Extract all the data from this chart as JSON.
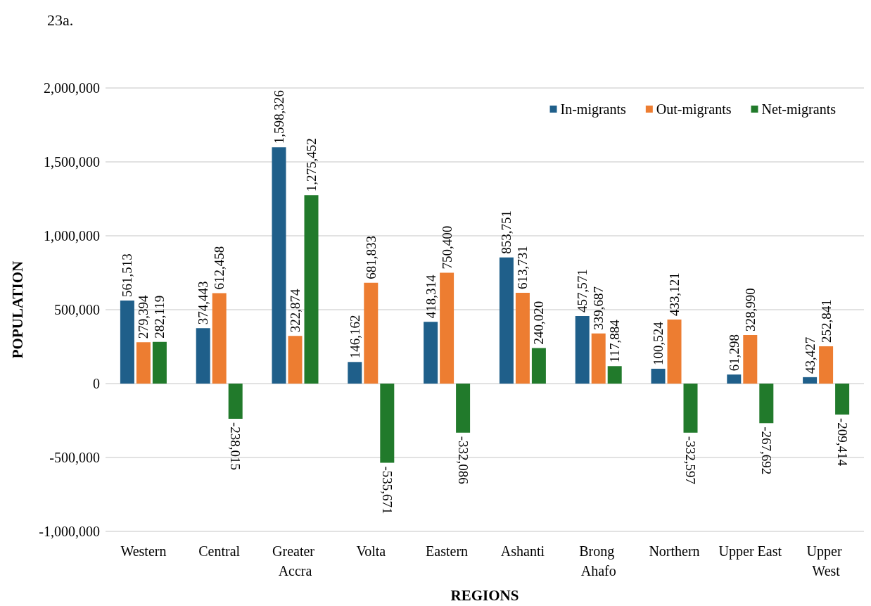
{
  "chart_data": {
    "type": "bar",
    "title": "23a.",
    "categories": [
      "Western",
      "Central",
      "Greater Accra",
      "Volta",
      "Eastern",
      "Ashanti",
      "Brong Ahafo",
      "Northern",
      "Upper East",
      "Upper West"
    ],
    "series": [
      {
        "name": "In-migrants",
        "color": "#1f5f8a",
        "values": [
          561513,
          374443,
          1598326,
          146162,
          418314,
          853751,
          457571,
          100524,
          61298,
          43427
        ],
        "value_labels": [
          "561,513",
          "374,443",
          "1,598,326",
          "146,162",
          "418,314",
          "853,751",
          "457,571",
          "100,524",
          "61,298",
          "43,427"
        ]
      },
      {
        "name": "Out-migrants",
        "color": "#ed7d31",
        "values": [
          279394,
          612458,
          322874,
          681833,
          750400,
          613731,
          339687,
          433121,
          328990,
          252841
        ],
        "value_labels": [
          "279,394",
          "612,458",
          "322,874",
          "681,833",
          "750,400",
          "613,731",
          "339,687",
          "433,121",
          "328,990",
          "252,841"
        ]
      },
      {
        "name": "Net-migrants",
        "color": "#217a2b",
        "values": [
          282119,
          -238015,
          1275452,
          -535671,
          -332086,
          240020,
          117884,
          -332597,
          -267692,
          -209414
        ],
        "value_labels": [
          "282,119",
          "-238,015",
          "1,275,452",
          "-535,671",
          "-332,086",
          "240,020",
          "117,884",
          "-332,597",
          "-267,692",
          "-209,414"
        ]
      }
    ],
    "xlabel": "REGIONS",
    "ylabel": "POPULATION",
    "ylim": [
      -1000000,
      2000000
    ],
    "yticks": [
      {
        "value": -1000000,
        "label": "-1,000,000"
      },
      {
        "value": -500000,
        "label": "-500,000"
      },
      0,
      {
        "value": 500000,
        "label": "500,000"
      },
      {
        "value": 1000000,
        "label": "1,000,000"
      },
      {
        "value": 1500000,
        "label": "1,500,000"
      },
      {
        "value": 2000000,
        "label": "2,000,000"
      }
    ],
    "grid": "y",
    "legend": "top right"
  }
}
